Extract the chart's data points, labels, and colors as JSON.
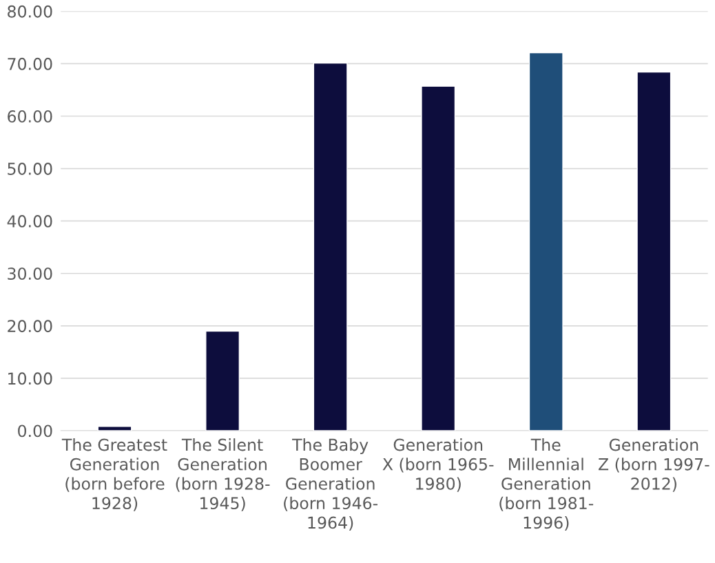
{
  "chart_data": {
    "type": "bar",
    "categories": [
      "The Greatest\nGeneration\n(born before\n1928)",
      "The Silent\nGeneration\n(born 1928-\n1945)",
      "The Baby\nBoomer\nGeneration\n(born 1946-\n1964)",
      "Generation\nX (born 1965-\n1980)",
      "The\nMillennial\nGeneration\n(born 1981-\n1996)",
      "Generation\nZ (born 1997-\n2012)"
    ],
    "values": [
      0.8,
      19.0,
      70.1,
      65.7,
      72.1,
      68.4
    ],
    "colors": [
      "#0d0d3d",
      "#0d0d3d",
      "#0d0d3d",
      "#0d0d3d",
      "#1f4e79",
      "#0d0d3d"
    ],
    "ylim": [
      0,
      80
    ],
    "yticks": [
      {
        "value": 0,
        "label": "0.00"
      },
      {
        "value": 10,
        "label": "10.00"
      },
      {
        "value": 20,
        "label": "20.00"
      },
      {
        "value": 30,
        "label": "30.00"
      },
      {
        "value": 40,
        "label": "40.00"
      },
      {
        "value": 50,
        "label": "50.00"
      },
      {
        "value": 60,
        "label": "60.00"
      },
      {
        "value": 70,
        "label": "70.00"
      },
      {
        "value": 80,
        "label": "80.00"
      }
    ],
    "grid": "y"
  }
}
